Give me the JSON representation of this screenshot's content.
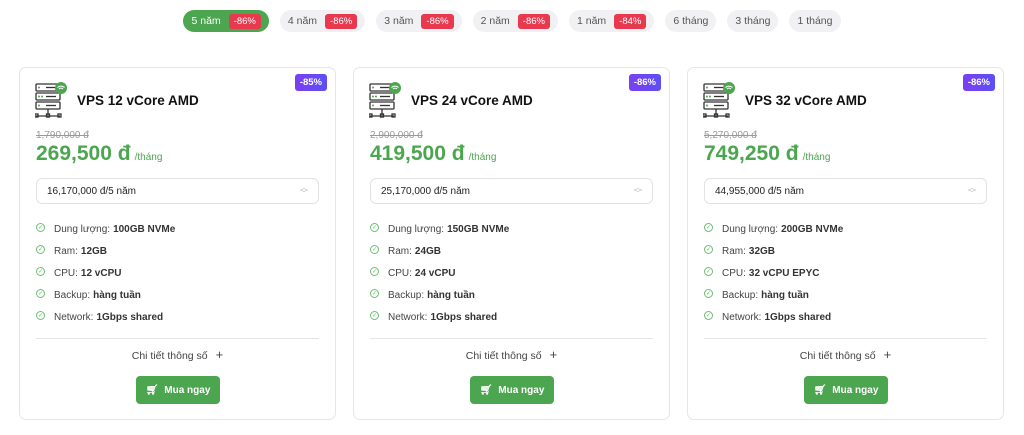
{
  "colors": {
    "accent": "#4ba64f",
    "discount": "#e8394f",
    "badge": "#6b46f3"
  },
  "period_tabs": [
    {
      "label": "5 năm",
      "discount": "-86%",
      "active": true
    },
    {
      "label": "4 năm",
      "discount": "-86%"
    },
    {
      "label": "3 năm",
      "discount": "-86%"
    },
    {
      "label": "2 năm",
      "discount": "-86%"
    },
    {
      "label": "1 năm",
      "discount": "-84%"
    },
    {
      "label": "6 tháng"
    },
    {
      "label": "3 tháng"
    },
    {
      "label": "1 tháng"
    }
  ],
  "plans": [
    {
      "badge": "-85%",
      "icon": "server-wifi-icon",
      "name": "VPS 12 vCore AMD",
      "old_price": "1,790,000 đ",
      "price": "269,500 đ",
      "unit": "/tháng",
      "total": "16,170,000 đ/5 năm",
      "features": [
        {
          "label": "Dung lượng:",
          "value": "100GB NVMe"
        },
        {
          "label": "Ram:",
          "value": "12GB"
        },
        {
          "label": "CPU:",
          "value": "12 vCPU"
        },
        {
          "label": "Backup:",
          "value": "hàng tuần"
        },
        {
          "label": "Network:",
          "value": "1Gbps shared"
        }
      ],
      "details": "Chi tiết thông số",
      "buy": "Mua ngay"
    },
    {
      "badge": "-86%",
      "icon": "server-wifi-icon",
      "name": "VPS 24 vCore AMD",
      "old_price": "2,900,000 đ",
      "price": "419,500 đ",
      "unit": "/tháng",
      "total": "25,170,000 đ/5 năm",
      "features": [
        {
          "label": "Dung lượng:",
          "value": "150GB NVMe"
        },
        {
          "label": "Ram:",
          "value": "24GB"
        },
        {
          "label": "CPU:",
          "value": "24 vCPU"
        },
        {
          "label": "Backup:",
          "value": "hàng tuần"
        },
        {
          "label": "Network:",
          "value": "1Gbps shared"
        }
      ],
      "details": "Chi tiết thông số",
      "buy": "Mua ngay"
    },
    {
      "badge": "-86%",
      "icon": "server-wifi-icon",
      "name": "VPS 32 vCore AMD",
      "old_price": "5,270,000 đ",
      "price": "749,250 đ",
      "unit": "/tháng",
      "total": "44,955,000 đ/5 năm",
      "features": [
        {
          "label": "Dung lượng:",
          "value": "200GB NVMe"
        },
        {
          "label": "Ram:",
          "value": "32GB"
        },
        {
          "label": "CPU:",
          "value": "32 vCPU EPYC"
        },
        {
          "label": "Backup:",
          "value": "hàng tuần"
        },
        {
          "label": "Network:",
          "value": "1Gbps shared"
        }
      ],
      "details": "Chi tiết thông số",
      "buy": "Mua ngay"
    }
  ]
}
